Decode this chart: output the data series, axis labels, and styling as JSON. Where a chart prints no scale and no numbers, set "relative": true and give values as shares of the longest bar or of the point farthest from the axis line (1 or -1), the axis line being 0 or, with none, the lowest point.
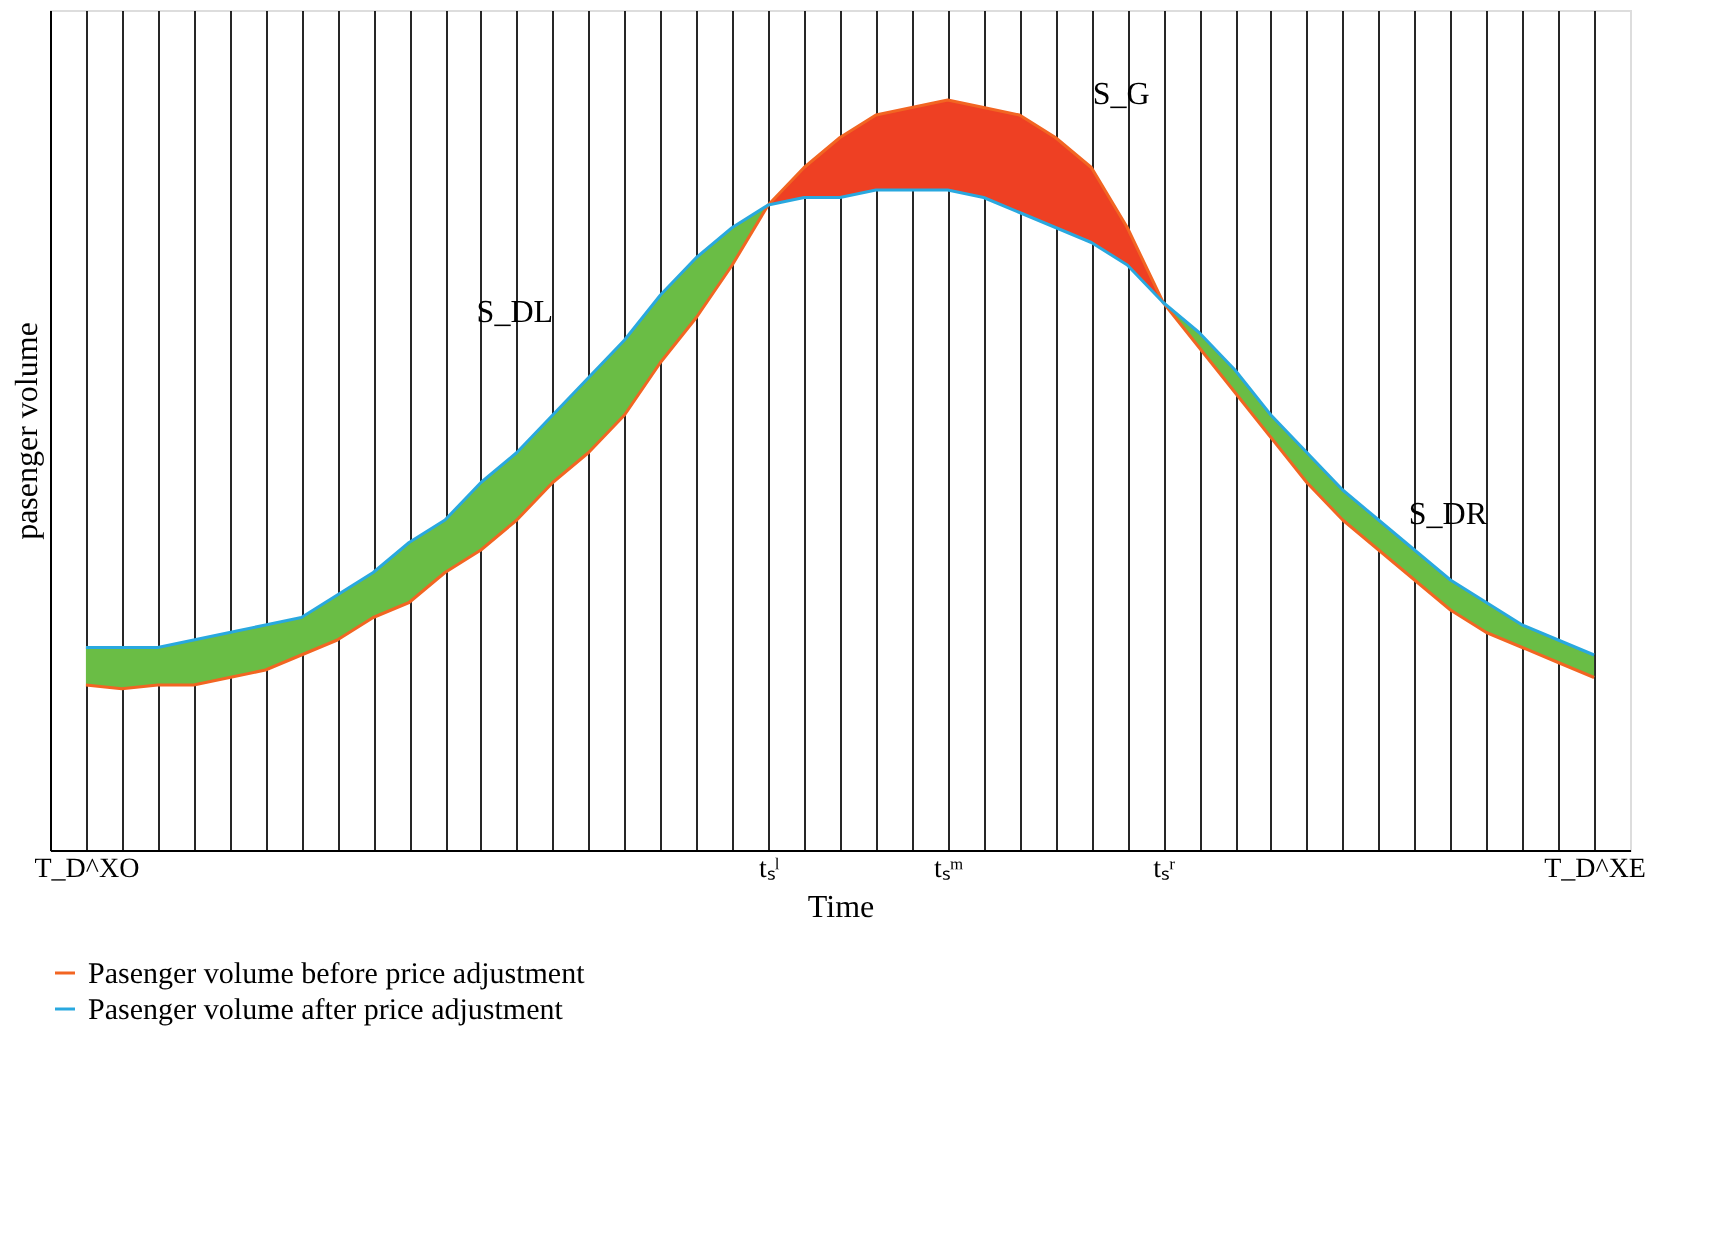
{
  "chart_data": {
    "type": "line",
    "relative": true,
    "xlabel": "Time",
    "ylabel": "pasenger volume",
    "categories": [
      "T_D^XO",
      null,
      null,
      null,
      null,
      null,
      null,
      null,
      null,
      null,
      null,
      null,
      null,
      null,
      null,
      null,
      null,
      null,
      null,
      "tₛˡ",
      null,
      null,
      null,
      null,
      "tₛᵐ",
      null,
      null,
      null,
      null,
      null,
      "tₛʳ",
      null,
      null,
      null,
      null,
      null,
      null,
      null,
      null,
      null,
      null,
      null,
      "T_D^XE"
    ],
    "series": [
      {
        "name": "Pasenger volume before price adjustment",
        "color": "#f26522",
        "values": [
          0.22,
          0.215,
          0.22,
          0.22,
          0.23,
          0.24,
          0.26,
          0.28,
          0.31,
          0.33,
          0.37,
          0.4,
          0.44,
          0.49,
          0.53,
          0.58,
          0.65,
          0.71,
          0.78,
          0.86,
          0.91,
          0.95,
          0.98,
          0.99,
          1.0,
          0.99,
          0.98,
          0.95,
          0.91,
          0.83,
          0.73,
          0.67,
          0.61,
          0.55,
          0.49,
          0.44,
          0.4,
          0.36,
          0.32,
          0.29,
          0.27,
          0.25,
          0.23
        ],
        "lower": [
          null,
          null,
          null,
          null,
          null,
          null,
          null,
          null,
          null,
          null,
          null,
          null,
          null,
          null,
          null,
          null,
          null,
          null,
          null,
          0.86,
          0.87,
          0.87,
          0.88,
          0.88,
          0.88,
          0.87,
          0.85,
          0.83,
          0.81,
          0.78,
          0.73,
          null,
          null,
          null,
          null,
          null,
          null,
          null,
          null,
          null,
          null,
          null,
          null
        ],
        "upper": [
          null,
          null,
          null,
          null,
          null,
          null,
          null,
          null,
          null,
          null,
          null,
          null,
          null,
          null,
          null,
          null,
          null,
          null,
          null,
          0.86,
          0.91,
          0.95,
          0.98,
          0.99,
          1.0,
          0.99,
          0.98,
          0.95,
          0.91,
          0.83,
          0.73,
          null,
          null,
          null,
          null,
          null,
          null,
          null,
          null,
          null,
          null,
          null,
          null
        ]
      },
      {
        "name": "Pasenger volume after price adjustment",
        "color": "#29a8df",
        "values": [
          0.27,
          0.27,
          0.27,
          0.28,
          0.29,
          0.3,
          0.31,
          0.34,
          0.37,
          0.41,
          0.44,
          0.49,
          0.53,
          0.58,
          0.63,
          0.68,
          0.74,
          0.79,
          0.83,
          0.86,
          0.87,
          0.87,
          0.88,
          0.88,
          0.88,
          0.87,
          0.85,
          0.83,
          0.81,
          0.78,
          0.73,
          0.69,
          0.64,
          0.58,
          0.53,
          0.48,
          0.44,
          0.4,
          0.36,
          0.33,
          0.3,
          0.28,
          0.26
        ],
        "lower": [
          0.22,
          0.215,
          0.22,
          0.22,
          0.23,
          0.24,
          0.26,
          0.28,
          0.31,
          0.33,
          0.37,
          0.4,
          0.44,
          0.49,
          0.53,
          0.58,
          0.65,
          0.71,
          0.78,
          0.86,
          null,
          null,
          null,
          null,
          null,
          null,
          null,
          null,
          null,
          null,
          0.73,
          0.67,
          0.61,
          0.55,
          0.49,
          0.44,
          0.4,
          0.36,
          0.32,
          0.29,
          0.27,
          0.25,
          0.23
        ],
        "upper": [
          0.27,
          0.27,
          0.27,
          0.28,
          0.29,
          0.3,
          0.31,
          0.34,
          0.37,
          0.41,
          0.44,
          0.49,
          0.53,
          0.58,
          0.63,
          0.68,
          0.74,
          0.79,
          0.83,
          0.86,
          null,
          null,
          null,
          null,
          null,
          null,
          null,
          null,
          null,
          null,
          0.73,
          0.69,
          0.64,
          0.58,
          0.53,
          0.48,
          0.44,
          0.4,
          0.36,
          0.33,
          0.3,
          0.28,
          0.26
        ]
      }
    ],
    "annotations": [
      "S_DL",
      "S_G",
      "S_DR"
    ],
    "grid": "x",
    "legend": "bottom",
    "marker": "none",
    "line_style": "solid"
  }
}
